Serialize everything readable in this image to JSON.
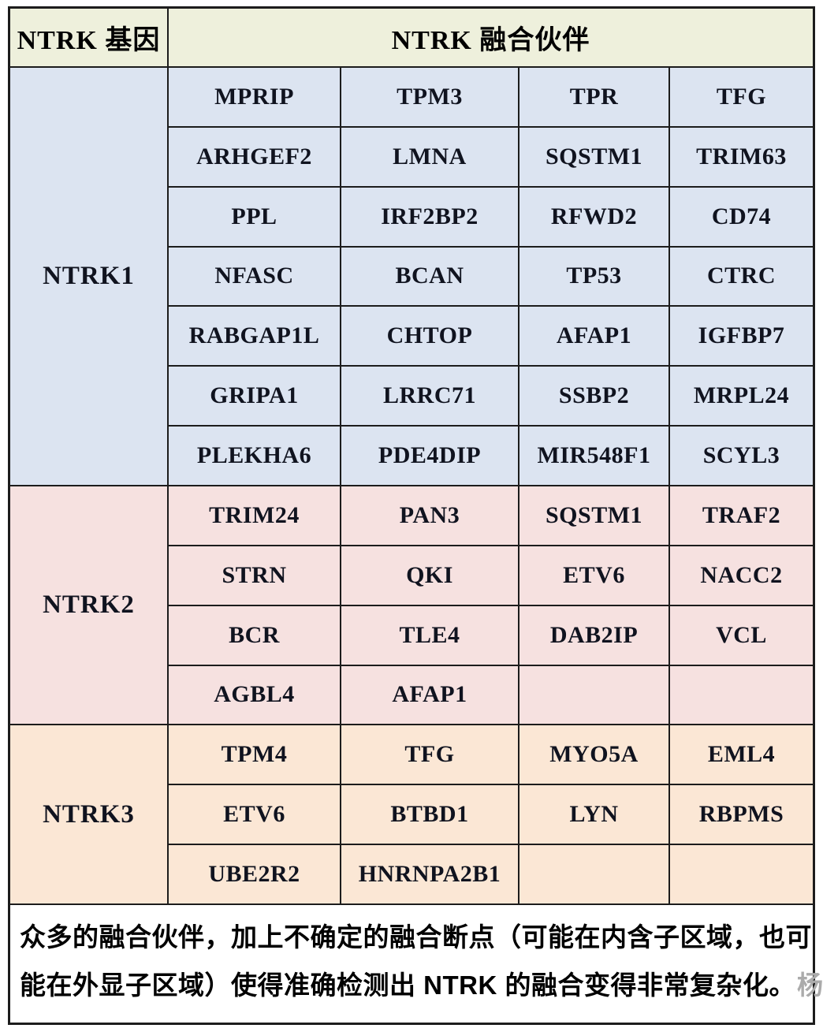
{
  "header": {
    "gene_col": "NTRK 基因",
    "partner_col": "NTRK 融合伙伴"
  },
  "sections": [
    {
      "gene": "NTRK1",
      "bg_color": "#dce4f1",
      "rows": [
        [
          "MPRIP",
          "TPM3",
          "TPR",
          "TFG"
        ],
        [
          "ARHGEF2",
          "LMNA",
          "SQSTM1",
          "TRIM63"
        ],
        [
          "PPL",
          "IRF2BP2",
          "RFWD2",
          "CD74"
        ],
        [
          "NFASC",
          "BCAN",
          "TP53",
          "CTRC"
        ],
        [
          "RABGAP1L",
          "CHTOP",
          "AFAP1",
          "IGFBP7"
        ],
        [
          "GRIPA1",
          "LRRC71",
          "SSBP2",
          "MRPL24"
        ],
        [
          "PLEKHA6",
          "PDE4DIP",
          "MIR548F1",
          "SCYL3"
        ]
      ]
    },
    {
      "gene": "NTRK2",
      "bg_color": "#f6e1e0",
      "rows": [
        [
          "TRIM24",
          "PAN3",
          "SQSTM1",
          "TRAF2"
        ],
        [
          "STRN",
          "QKI",
          "ETV6",
          "NACC2"
        ],
        [
          "BCR",
          "TLE4",
          "DAB2IP",
          "VCL"
        ],
        [
          "AGBL4",
          "AFAP1",
          "",
          ""
        ]
      ]
    },
    {
      "gene": "NTRK3",
      "bg_color": "#fbe7d5",
      "rows": [
        [
          "TPM4",
          "TFG",
          "MYO5A",
          "EML4"
        ],
        [
          "ETV6",
          "BTBD1",
          "LYN",
          "RBPMS"
        ],
        [
          "UBE2R2",
          "HNRNPA2B1",
          "",
          ""
        ]
      ]
    }
  ],
  "footer": {
    "line1": "众多的融合伙伴，加上不确定的融合断点（可能在内含子区域，也可",
    "line2": "能在外显子区域）使得准确检测出 NTRK 的融合变得非常复杂化。",
    "watermark": "杨"
  },
  "colors": {
    "header_bg": "#eef0dc",
    "ntrk1_bg": "#dce4f1",
    "ntrk2_bg": "#f6e1e0",
    "ntrk3_bg": "#fbe7d5",
    "gridline": "#1c1c1c",
    "gene_text": "#10131f",
    "footer_text": "#000000"
  }
}
